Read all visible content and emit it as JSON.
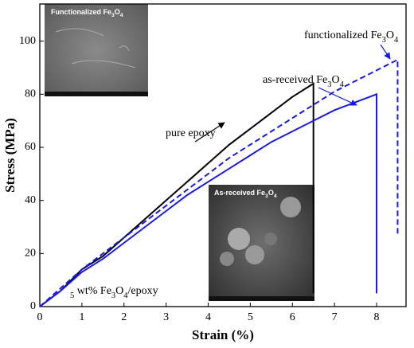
{
  "chart_data": {
    "type": "line",
    "xlabel": "Strain (%)",
    "ylabel": "Stress (MPa)",
    "xlim": [
      0,
      8.7
    ],
    "ylim": [
      0,
      114
    ],
    "xticks": [
      0,
      1,
      2,
      3,
      4,
      5,
      6,
      7,
      8
    ],
    "yticks": [
      0,
      20,
      40,
      60,
      80,
      100
    ],
    "series": [
      {
        "name": "pure epoxy",
        "color": "#000000",
        "style": "solid",
        "x": [
          0,
          0.5,
          1,
          1.5,
          2,
          2.5,
          3,
          3.5,
          4,
          4.5,
          5,
          5.5,
          6,
          6.5,
          6.5
        ],
        "values": [
          0,
          6,
          14,
          19,
          26,
          33,
          40,
          47,
          54,
          61,
          67,
          73,
          79,
          84,
          5
        ]
      },
      {
        "name": "as-received Fe3O4",
        "color": "#1a1ae6",
        "style": "solid",
        "x": [
          0,
          0.5,
          1,
          1.5,
          2,
          2.5,
          3,
          3.5,
          4,
          4.5,
          5,
          5.5,
          6,
          6.5,
          7,
          7.5,
          8,
          8
        ],
        "values": [
          0,
          6,
          13,
          18,
          24,
          30,
          36,
          42,
          47,
          52,
          57,
          62,
          66,
          70,
          74,
          77,
          80,
          5
        ]
      },
      {
        "name": "functionalized Fe3O4",
        "color": "#1a1ae6",
        "style": "dashed",
        "x": [
          0,
          0.5,
          1,
          1.5,
          2,
          2.5,
          3,
          3.5,
          4,
          4.5,
          5,
          5.5,
          6,
          6.5,
          7,
          7.5,
          8,
          8.5,
          8.5
        ],
        "values": [
          0,
          7,
          14,
          20,
          26,
          32,
          38,
          44,
          50,
          56,
          61,
          66,
          71,
          76,
          81,
          85,
          89,
          93,
          27
        ]
      }
    ],
    "annotation": "5 wt% Fe3O4/epoxy",
    "insets": [
      "Functionalized Fe3O4",
      "As-received Fe3O4"
    ]
  }
}
